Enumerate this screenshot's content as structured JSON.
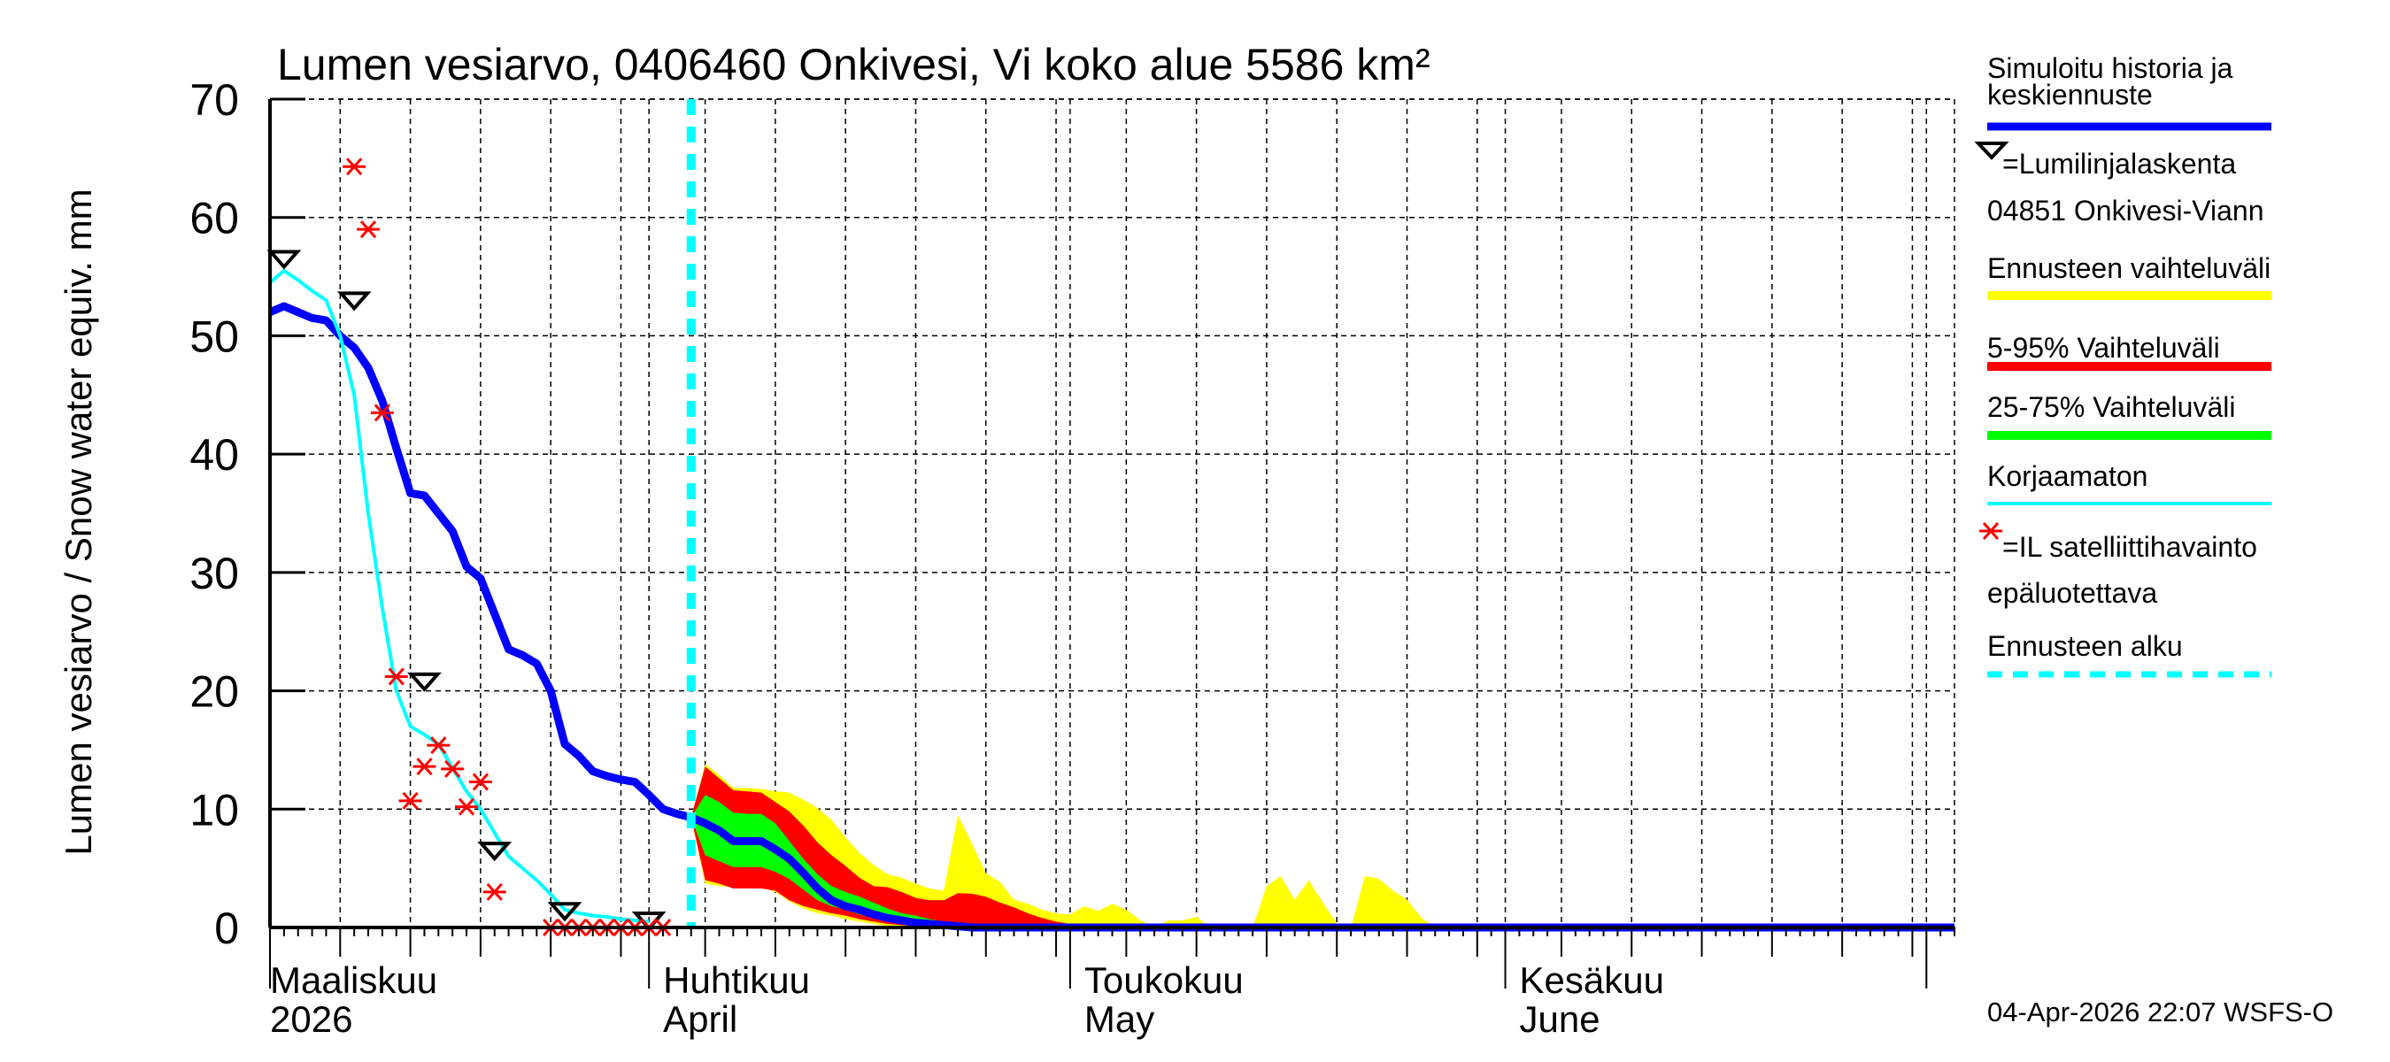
{
  "chart_data": {
    "type": "area",
    "title": "Lumen vesiarvo, 0406460 Onkivesi, Vi koko alue 5586 km²",
    "ylabel": "Lumen vesiarvo / Snow water equiv.    mm",
    "ylim": [
      0,
      70
    ],
    "yticks": [
      "0",
      "10",
      "20",
      "30",
      "40",
      "50",
      "60",
      "70"
    ],
    "xlim": [
      "2026-03-05",
      "2026-07-03"
    ],
    "grid": true,
    "legend_position": "right",
    "month_labels": [
      {
        "date": "2026-03-05",
        "line1": "Maaliskuu",
        "line2": "2026"
      },
      {
        "date": "2026-04-01",
        "line1": "Huhtikuu",
        "line2": "April"
      },
      {
        "date": "2026-05-01",
        "line1": "Toukokuu",
        "line2": "May"
      },
      {
        "date": "2026-06-01",
        "line1": "Kesäkuu",
        "line2": "June"
      }
    ],
    "forecast_start": "2026-04-04",
    "colors": {
      "median": "#0000ff",
      "range": "#ffff00",
      "p5_95": "#ff0000",
      "p25_75": "#00ff00",
      "uncorrected": "#00ffff",
      "forecast_start": "#00ffff",
      "satellite": "#ff0000",
      "snowline": "#000000"
    },
    "series": [
      {
        "name": "Simuloitu historia ja keskiennuste",
        "kind": "line",
        "points": [
          [
            "2026-03-05",
            52
          ],
          [
            "2026-03-06",
            52.5
          ],
          [
            "2026-03-07",
            52
          ],
          [
            "2026-03-08",
            51.5
          ],
          [
            "2026-03-09",
            51.3
          ],
          [
            "2026-03-10",
            50
          ],
          [
            "2026-03-11",
            49
          ],
          [
            "2026-03-12",
            47.3
          ],
          [
            "2026-03-13",
            44.5
          ],
          [
            "2026-03-14",
            40.5
          ],
          [
            "2026-03-15",
            36.7
          ],
          [
            "2026-03-16",
            36.5
          ],
          [
            "2026-03-17",
            35
          ],
          [
            "2026-03-18",
            33.5
          ],
          [
            "2026-03-19",
            30.5
          ],
          [
            "2026-03-20",
            29.5
          ],
          [
            "2026-03-21",
            26.5
          ],
          [
            "2026-03-22",
            23.5
          ],
          [
            "2026-03-23",
            23
          ],
          [
            "2026-03-24",
            22.3
          ],
          [
            "2026-03-25",
            20
          ],
          [
            "2026-03-26",
            15.5
          ],
          [
            "2026-03-27",
            14.5
          ],
          [
            "2026-03-28",
            13.2
          ],
          [
            "2026-03-29",
            12.8
          ],
          [
            "2026-03-30",
            12.5
          ],
          [
            "2026-03-31",
            12.3
          ],
          [
            "2026-04-01",
            11.2
          ],
          [
            "2026-04-02",
            10
          ],
          [
            "2026-04-03",
            9.6
          ],
          [
            "2026-04-04",
            9.3
          ],
          [
            "2026-04-05",
            8.8
          ],
          [
            "2026-04-06",
            8.2
          ],
          [
            "2026-04-07",
            7.3
          ],
          [
            "2026-04-08",
            7.3
          ],
          [
            "2026-04-09",
            7.3
          ],
          [
            "2026-04-10",
            6.6
          ],
          [
            "2026-04-11",
            5.8
          ],
          [
            "2026-04-12",
            4.6
          ],
          [
            "2026-04-13",
            3.3
          ],
          [
            "2026-04-14",
            2.3
          ],
          [
            "2026-04-15",
            1.8
          ],
          [
            "2026-04-16",
            1.5
          ],
          [
            "2026-04-17",
            1.1
          ],
          [
            "2026-04-18",
            0.8
          ],
          [
            "2026-04-19",
            0.6
          ],
          [
            "2026-04-20",
            0.4
          ],
          [
            "2026-04-21",
            0.3
          ],
          [
            "2026-04-22",
            0.2
          ],
          [
            "2026-04-23",
            0.1
          ],
          [
            "2026-04-24",
            0
          ],
          [
            "2026-07-03",
            0
          ]
        ]
      },
      {
        "name": "Korjaamaton",
        "kind": "line",
        "points": [
          [
            "2026-03-05",
            54.5
          ],
          [
            "2026-03-06",
            55.5
          ],
          [
            "2026-03-07",
            54.7
          ],
          [
            "2026-03-08",
            53.8
          ],
          [
            "2026-03-09",
            53
          ],
          [
            "2026-03-10",
            50
          ],
          [
            "2026-03-11",
            45
          ],
          [
            "2026-03-12",
            35
          ],
          [
            "2026-03-13",
            27
          ],
          [
            "2026-03-14",
            20
          ],
          [
            "2026-03-15",
            17
          ],
          [
            "2026-03-16",
            16.3
          ],
          [
            "2026-03-17",
            15.5
          ],
          [
            "2026-03-18",
            13.5
          ],
          [
            "2026-03-19",
            11.5
          ],
          [
            "2026-03-20",
            10
          ],
          [
            "2026-03-21",
            8
          ],
          [
            "2026-03-22",
            6
          ],
          [
            "2026-03-23",
            5
          ],
          [
            "2026-03-24",
            4
          ],
          [
            "2026-03-25",
            2.8
          ],
          [
            "2026-03-26",
            1.5
          ],
          [
            "2026-03-27",
            1.2
          ],
          [
            "2026-03-28",
            1
          ],
          [
            "2026-03-29",
            0.9
          ],
          [
            "2026-03-30",
            0.7
          ],
          [
            "2026-03-31",
            0.6
          ],
          [
            "2026-04-01",
            0.5
          ]
        ]
      },
      {
        "name": "Ennusteen vaihteluväli",
        "kind": "band",
        "points": [
          [
            "2026-04-04",
            9.3,
            9.3
          ],
          [
            "2026-04-05",
            3.7,
            13.8
          ],
          [
            "2026-04-06",
            3.5,
            12.9
          ],
          [
            "2026-04-07",
            3.4,
            11.8
          ],
          [
            "2026-04-08",
            3.4,
            11.8
          ],
          [
            "2026-04-09",
            3.4,
            11.7
          ],
          [
            "2026-04-10",
            3.0,
            11.5
          ],
          [
            "2026-04-11",
            2.2,
            11.4
          ],
          [
            "2026-04-12",
            1.6,
            10.8
          ],
          [
            "2026-04-13",
            1.2,
            10.1
          ],
          [
            "2026-04-14",
            1.0,
            9.1
          ],
          [
            "2026-04-15",
            0.7,
            7.6
          ],
          [
            "2026-04-16",
            0.5,
            6.3
          ],
          [
            "2026-04-17",
            0.3,
            5.3
          ],
          [
            "2026-04-18",
            0.1,
            4.5
          ],
          [
            "2026-04-19",
            0,
            4.2
          ],
          [
            "2026-04-20",
            0,
            3.7
          ],
          [
            "2026-04-21",
            0,
            3.3
          ],
          [
            "2026-04-22",
            0,
            3.1
          ],
          [
            "2026-04-23",
            0,
            9.5
          ],
          [
            "2026-04-24",
            0,
            7.1
          ],
          [
            "2026-04-25",
            0,
            4.6
          ],
          [
            "2026-04-26",
            0,
            3.85
          ],
          [
            "2026-04-27",
            0,
            2.35
          ],
          [
            "2026-04-28",
            0,
            2.0
          ],
          [
            "2026-04-29",
            0,
            1.5
          ],
          [
            "2026-04-30",
            0,
            1.2
          ],
          [
            "2026-05-01",
            0,
            1.1
          ],
          [
            "2026-05-02",
            0,
            1.8
          ],
          [
            "2026-05-03",
            0,
            1.4
          ],
          [
            "2026-05-04",
            0,
            2.0
          ],
          [
            "2026-05-05",
            0,
            1.5
          ],
          [
            "2026-05-06",
            0,
            0.6
          ],
          [
            "2026-05-07",
            0,
            0
          ],
          [
            "2026-05-08",
            0,
            0.6
          ],
          [
            "2026-05-09",
            0,
            0.6
          ],
          [
            "2026-05-10",
            0,
            0.9
          ],
          [
            "2026-05-11",
            0,
            0
          ],
          [
            "2026-05-14",
            0,
            0
          ],
          [
            "2026-05-15",
            0,
            3.5
          ],
          [
            "2026-05-16",
            0,
            4.35
          ],
          [
            "2026-05-17",
            0,
            2.35
          ],
          [
            "2026-05-18",
            0,
            4.0
          ],
          [
            "2026-05-19",
            0,
            2.1
          ],
          [
            "2026-05-20",
            0,
            0.35
          ],
          [
            "2026-05-21",
            0,
            0
          ],
          [
            "2026-05-22",
            0,
            4.35
          ],
          [
            "2026-05-23",
            0,
            4.1
          ],
          [
            "2026-05-24",
            0,
            3.1
          ],
          [
            "2026-05-25",
            0,
            2.35
          ],
          [
            "2026-05-26",
            0,
            0.85
          ],
          [
            "2026-05-27",
            0,
            0
          ]
        ]
      },
      {
        "name": "5-95% Vaihteluväli",
        "kind": "band",
        "points": [
          [
            "2026-04-04",
            9.3,
            9.3
          ],
          [
            "2026-04-05",
            4.0,
            13.6
          ],
          [
            "2026-04-06",
            3.7,
            12.6
          ],
          [
            "2026-04-07",
            3.3,
            11.6
          ],
          [
            "2026-04-08",
            3.3,
            11.5
          ],
          [
            "2026-04-09",
            3.3,
            11.4
          ],
          [
            "2026-04-10",
            3.1,
            10.6
          ],
          [
            "2026-04-11",
            2.3,
            9.8
          ],
          [
            "2026-04-12",
            1.8,
            8.6
          ],
          [
            "2026-04-13",
            1.5,
            7.2
          ],
          [
            "2026-04-14",
            1.2,
            6.1
          ],
          [
            "2026-04-15",
            1.0,
            5.2
          ],
          [
            "2026-04-16",
            0.7,
            4.2
          ],
          [
            "2026-04-17",
            0.5,
            3.5
          ],
          [
            "2026-04-18",
            0.3,
            3.4
          ],
          [
            "2026-04-19",
            0.2,
            3.0
          ],
          [
            "2026-04-20",
            0.1,
            2.5
          ],
          [
            "2026-04-21",
            0,
            2.3
          ],
          [
            "2026-04-22",
            0,
            2.3
          ],
          [
            "2026-04-23",
            0,
            2.9
          ],
          [
            "2026-04-24",
            0,
            2.85
          ],
          [
            "2026-04-25",
            0,
            2.6
          ],
          [
            "2026-04-26",
            0,
            2.1
          ],
          [
            "2026-04-27",
            0,
            1.7
          ],
          [
            "2026-04-28",
            0,
            1.2
          ],
          [
            "2026-04-29",
            0,
            0.8
          ],
          [
            "2026-04-30",
            0,
            0.5
          ],
          [
            "2026-05-01",
            0,
            0.3
          ],
          [
            "2026-05-02",
            0,
            0
          ]
        ]
      },
      {
        "name": "25-75% Vaihteluväli",
        "kind": "band",
        "points": [
          [
            "2026-04-04",
            9.3,
            9.3
          ],
          [
            "2026-04-05",
            6.1,
            11.2
          ],
          [
            "2026-04-06",
            5.6,
            10.6
          ],
          [
            "2026-04-07",
            5.1,
            9.7
          ],
          [
            "2026-04-08",
            5.1,
            9.6
          ],
          [
            "2026-04-09",
            5.1,
            9.6
          ],
          [
            "2026-04-10",
            4.7,
            8.8
          ],
          [
            "2026-04-11",
            4.1,
            7.3
          ],
          [
            "2026-04-12",
            3.2,
            5.8
          ],
          [
            "2026-04-13",
            2.3,
            4.5
          ],
          [
            "2026-04-14",
            1.8,
            3.5
          ],
          [
            "2026-04-15",
            1.5,
            3.0
          ],
          [
            "2026-04-16",
            1.1,
            2.6
          ],
          [
            "2026-04-17",
            0.8,
            2.1
          ],
          [
            "2026-04-18",
            0.6,
            1.6
          ],
          [
            "2026-04-19",
            0.4,
            1.2
          ],
          [
            "2026-04-20",
            0.2,
            1.0
          ],
          [
            "2026-04-21",
            0.1,
            0.7
          ],
          [
            "2026-04-22",
            0,
            0.5
          ],
          [
            "2026-04-23",
            0,
            0.3
          ],
          [
            "2026-04-24",
            0,
            0.2
          ],
          [
            "2026-04-25",
            0,
            0.1
          ],
          [
            "2026-04-26",
            0,
            0
          ]
        ]
      },
      {
        "name": "=Lumilinjalaskenta",
        "kind": "marker-triangle",
        "points": [
          [
            "2026-03-06",
            56.5
          ],
          [
            "2026-03-11",
            53
          ],
          [
            "2026-03-16",
            20.8
          ],
          [
            "2026-03-21",
            6.5
          ],
          [
            "2026-03-26",
            1.4
          ],
          [
            "2026-04-01",
            0.6
          ]
        ]
      },
      {
        "name": "=IL satelliittihavainto",
        "kind": "marker-star",
        "points": [
          [
            "2026-03-11",
            64.3
          ],
          [
            "2026-03-12",
            59
          ],
          [
            "2026-03-13",
            43.5
          ],
          [
            "2026-03-14",
            21.2
          ],
          [
            "2026-03-15",
            10.7
          ],
          [
            "2026-03-16",
            13.6
          ],
          [
            "2026-03-17",
            15.4
          ],
          [
            "2026-03-18",
            13.4
          ],
          [
            "2026-03-19",
            10.2
          ],
          [
            "2026-03-20",
            12.3
          ],
          [
            "2026-03-21",
            3
          ],
          [
            "2026-03-25",
            0
          ],
          [
            "2026-03-26",
            0
          ],
          [
            "2026-03-27",
            0
          ],
          [
            "2026-03-28",
            0
          ],
          [
            "2026-03-29",
            0
          ],
          [
            "2026-03-30",
            0
          ],
          [
            "2026-03-31",
            0
          ],
          [
            "2026-04-01",
            0
          ],
          [
            "2026-04-02",
            0
          ]
        ]
      }
    ]
  },
  "legend": {
    "median_l1": "Simuloitu historia ja",
    "median_l2": "keskiennuste",
    "snowline": "=Lumilinjalaskenta",
    "station": "04851 Onkivesi-Viann",
    "range": "Ennusteen vaihteluväli",
    "p5_95": "5-95% Vaihteluväli",
    "p25_75": "25-75% Vaihteluväli",
    "uncorrected": "Korjaamaton",
    "satellite_l1": "=IL satelliittihavainto",
    "satellite_l2": "epäluotettava",
    "forecast_start": "Ennusteen alku"
  },
  "timestamp": "04-Apr-2026 22:07 WSFS-O"
}
